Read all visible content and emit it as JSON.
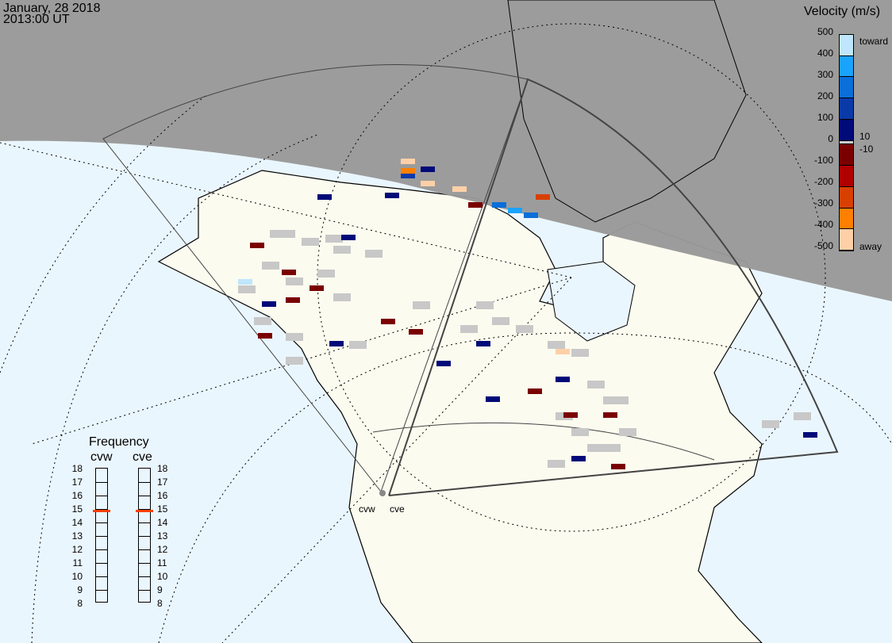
{
  "header": {
    "date": "January, 28 2018",
    "time": "2013:00 UT"
  },
  "colorbar": {
    "title": "Velocity (m/s)",
    "ticks": [
      "500",
      "400",
      "300",
      "200",
      "100",
      "0",
      "-100",
      "-200",
      "-300",
      "-400",
      "-500"
    ],
    "label_toward": "toward",
    "label_away": "away",
    "label_pos": "10",
    "label_neg": "-10",
    "colors": [
      "#bfe6fd",
      "#1aa3fc",
      "#0a6fd8",
      "#0a3aa8",
      "#000a78",
      "#cccccc",
      "#7a0000",
      "#b00000",
      "#d84000",
      "#ff7f00",
      "#ffd0a8"
    ]
  },
  "frequency": {
    "title": "Frequency",
    "unit_scale": [
      8,
      18
    ],
    "ticks": [
      "18",
      "17",
      "16",
      "15",
      "14",
      "13",
      "12",
      "11",
      "10",
      "9",
      "8"
    ],
    "radars": [
      {
        "name": "cvw",
        "freq_mhz": 14.8
      },
      {
        "name": "cve",
        "freq_mhz": 14.8
      }
    ],
    "marker_color": "#ff4000"
  },
  "radar_labels": [
    "cvw",
    "cve"
  ],
  "colors": {
    "ocean": "#eaf6fe",
    "land": "#fbfbef",
    "night": "#999999",
    "ground_scatter": "#c8c8c8"
  }
}
